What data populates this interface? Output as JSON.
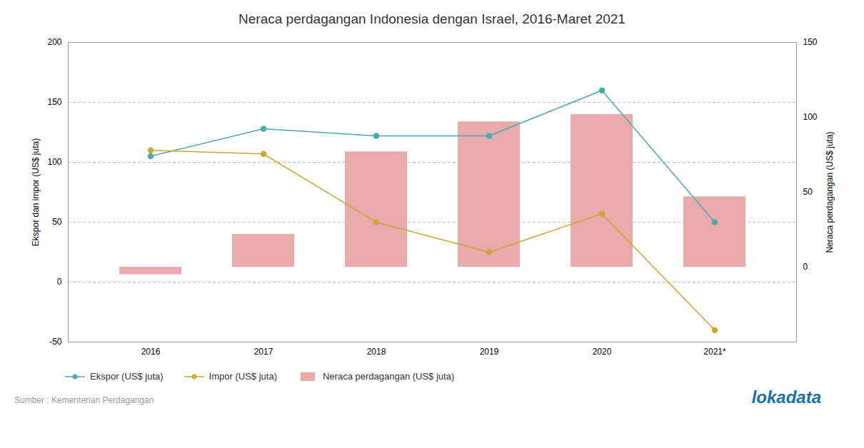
{
  "chart_data": {
    "type": "combo",
    "title": "Neraca perdagangan Indonesia dengan Israel, 2016-Maret 2021",
    "categories": [
      "2016",
      "2017",
      "2018",
      "2019",
      "2020",
      "2021*"
    ],
    "series": [
      {
        "name": "Ekspor (US$ juta)",
        "type": "line",
        "marker": "circle",
        "color": "#4baab0",
        "values": [
          105,
          128,
          122,
          122,
          160,
          50
        ]
      },
      {
        "name": "Impor (US$ juta)",
        "type": "line",
        "marker": "circle",
        "color": "#c8a832",
        "values": [
          110,
          107,
          50,
          25,
          57,
          -40
        ]
      },
      {
        "name": "Neraca perdagangan (US$ juta)",
        "type": "bar",
        "axis": "y2",
        "color": "#e8aaaa",
        "values": [
          -5,
          22,
          77,
          97,
          102,
          47
        ]
      }
    ],
    "ylim": [
      -50,
      200
    ],
    "yticks": [
      -50,
      0,
      50,
      100,
      150,
      200
    ],
    "y2lim": [
      -50,
      150
    ],
    "y2ticks": [
      0,
      50,
      100,
      150
    ],
    "ylabel": "Ekspor dan impor (US$ juta)",
    "y2label": "Neraca perdagangan (US$ juta)",
    "grid": true,
    "legend": "bottom",
    "source": "Sumber : Kementerian Perdagangan",
    "annotations": [
      "lokadata"
    ]
  }
}
